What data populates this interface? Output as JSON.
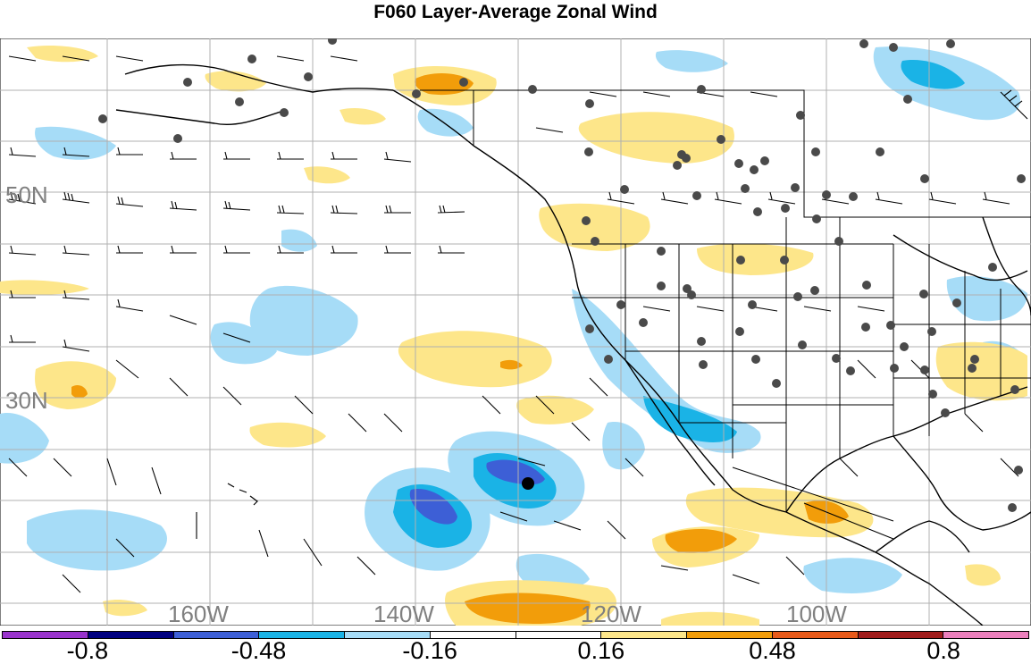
{
  "title": "F060 Layer-Average Zonal Wind",
  "map": {
    "lat_labels": [
      "50N",
      "30N"
    ],
    "lon_labels": [
      "160W",
      "140W",
      "120W",
      "100W"
    ]
  },
  "colorbar": {
    "colors": [
      "#9933cc",
      "#000080",
      "#3d5fd6",
      "#1ab3e6",
      "#a6dcf7",
      "#ffffff",
      "#ffffff",
      "#fde68a",
      "#f29d0a",
      "#e85a1a",
      "#a11d1d",
      "#ec80bd"
    ],
    "labels": [
      "-0.8",
      "-0.48",
      "-0.16",
      "0.16",
      "0.48",
      "0.8"
    ]
  }
}
